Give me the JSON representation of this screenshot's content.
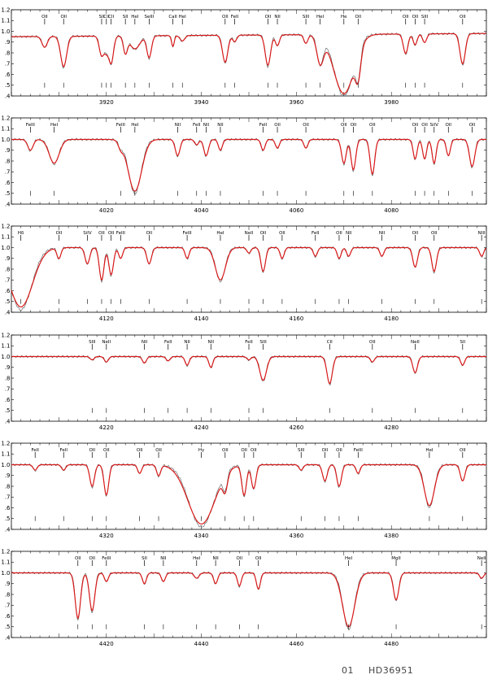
{
  "caption": {
    "label": "01",
    "star": "HD36951"
  },
  "colors": {
    "observed": "#555555",
    "model": "#d91a1a",
    "axes": "#000000"
  },
  "chart_data": [
    {
      "type": "line",
      "xlim": [
        3900,
        4000
      ],
      "ylim": [
        0.4,
        1.2
      ],
      "x_ticks": [
        3920,
        3940,
        3960,
        3980
      ],
      "y_ticks": [
        "1.2",
        "1.1",
        "1.0",
        ".9",
        ".8",
        ".7",
        ".6",
        ".5",
        ".4"
      ],
      "continuum": 0.95,
      "slope": 0.03,
      "lines": [
        {
          "x": 3907,
          "label": "OII",
          "d": 0.1,
          "w": 0.8
        },
        {
          "x": 3911,
          "label": "OII",
          "d": 0.28,
          "w": 0.9
        },
        {
          "x": 3919,
          "label": "SII",
          "d": 0.18,
          "w": 0.7
        },
        {
          "x": 3920,
          "label": "CII",
          "d": 0.12,
          "w": 0.6
        },
        {
          "x": 3921,
          "label": "CII",
          "d": 0.25,
          "w": 0.7
        },
        {
          "x": 3924,
          "label": "SII",
          "d": 0.15,
          "w": 0.6
        },
        {
          "x": 3926,
          "label": "HeI",
          "d": 0.12,
          "w": 1.5
        },
        {
          "x": 3929,
          "label": "SeIII",
          "d": 0.2,
          "w": 0.7
        },
        {
          "x": 3934,
          "label": "CaII",
          "d": 0.1,
          "w": 0.4
        },
        {
          "x": 3936,
          "label": "HeI",
          "d": 0.05,
          "w": 0.7
        },
        {
          "x": 3945,
          "label": "OII",
          "d": 0.25,
          "w": 0.8
        },
        {
          "x": 3947,
          "label": "FeII",
          "d": 0.06,
          "w": 0.6
        },
        {
          "x": 3954,
          "label": "OII",
          "d": 0.28,
          "w": 0.8
        },
        {
          "x": 3956,
          "label": "NII",
          "d": 0.1,
          "w": 0.6
        },
        {
          "x": 3962,
          "label": "SIII",
          "d": 0.08,
          "w": 0.6
        },
        {
          "x": 3965,
          "label": "HeI",
          "d": 0.25,
          "w": 1.0
        },
        {
          "x": 3970,
          "label": "He",
          "d": 0.55,
          "w": 3.0
        },
        {
          "x": 3973,
          "label": "OII",
          "d": 0.25,
          "w": 0.8
        },
        {
          "x": 3983,
          "label": "OII",
          "d": 0.18,
          "w": 0.7
        },
        {
          "x": 3985,
          "label": "OII",
          "d": 0.1,
          "w": 0.6
        },
        {
          "x": 3987,
          "label": "SIII",
          "d": 0.08,
          "w": 0.6
        },
        {
          "x": 3995,
          "label": "OII",
          "d": 0.28,
          "w": 0.8
        }
      ]
    },
    {
      "type": "line",
      "xlim": [
        4000,
        4100
      ],
      "ylim": [
        0.4,
        1.2
      ],
      "x_ticks": [
        4020,
        4040,
        4060,
        4080
      ],
      "y_ticks": [
        "1.2",
        "1.1",
        "1.0",
        ".9",
        ".8",
        ".7",
        ".6",
        ".5",
        ".4"
      ],
      "continuum": 1.0,
      "slope": 0.0,
      "lines": [
        {
          "x": 4004,
          "label": "FeIII",
          "d": 0.1,
          "w": 0.8
        },
        {
          "x": 4009,
          "label": "HeI",
          "d": 0.22,
          "w": 1.5
        },
        {
          "x": 4023,
          "label": "FeIII",
          "d": 0.06,
          "w": 0.7
        },
        {
          "x": 4026,
          "label": "HeI",
          "d": 0.48,
          "w": 2.0
        },
        {
          "x": 4035,
          "label": "NII",
          "d": 0.15,
          "w": 0.7
        },
        {
          "x": 4039,
          "label": "FeII",
          "d": 0.05,
          "w": 0.6
        },
        {
          "x": 4041,
          "label": "NII",
          "d": 0.15,
          "w": 0.7
        },
        {
          "x": 4044,
          "label": "NII",
          "d": 0.1,
          "w": 0.6
        },
        {
          "x": 4053,
          "label": "FeII",
          "d": 0.1,
          "w": 0.6
        },
        {
          "x": 4056,
          "label": "OII",
          "d": 0.08,
          "w": 0.6
        },
        {
          "x": 4062,
          "label": "OII",
          "d": 0.08,
          "w": 0.6
        },
        {
          "x": 4070,
          "label": "OII",
          "d": 0.22,
          "w": 0.7
        },
        {
          "x": 4072,
          "label": "OII",
          "d": 0.28,
          "w": 0.7
        },
        {
          "x": 4076,
          "label": "OII",
          "d": 0.32,
          "w": 0.7
        },
        {
          "x": 4085,
          "label": "OII",
          "d": 0.18,
          "w": 0.6
        },
        {
          "x": 4087,
          "label": "OII",
          "d": 0.18,
          "w": 0.6
        },
        {
          "x": 4089,
          "label": "SiIV",
          "d": 0.22,
          "w": 0.6
        },
        {
          "x": 4092,
          "label": "OII",
          "d": 0.15,
          "w": 0.6
        },
        {
          "x": 4097,
          "label": "OII",
          "d": 0.25,
          "w": 0.8
        }
      ]
    },
    {
      "type": "line",
      "xlim": [
        4100,
        4200
      ],
      "ylim": [
        0.4,
        1.2
      ],
      "x_ticks": [
        4120,
        4140,
        4160,
        4180
      ],
      "y_ticks": [
        "1.2",
        "1.1",
        "1.0",
        ".9",
        ".8",
        ".7",
        ".6",
        ".5",
        ".4"
      ],
      "continuum": 1.0,
      "slope": 0.0,
      "lines": [
        {
          "x": 4102,
          "label": "Hδ",
          "d": 0.55,
          "w": 3.5
        },
        {
          "x": 4110,
          "label": "OII",
          "d": 0.1,
          "w": 0.6
        },
        {
          "x": 4116,
          "label": "SiIV",
          "d": 0.15,
          "w": 0.7
        },
        {
          "x": 4119,
          "label": "OII",
          "d": 0.3,
          "w": 0.7
        },
        {
          "x": 4121,
          "label": "OII",
          "d": 0.25,
          "w": 0.7
        },
        {
          "x": 4123,
          "label": "FeIII",
          "d": 0.1,
          "w": 0.6
        },
        {
          "x": 4129,
          "label": "OII",
          "d": 0.15,
          "w": 0.7
        },
        {
          "x": 4137,
          "label": "FeIII",
          "d": 0.1,
          "w": 0.6
        },
        {
          "x": 4144,
          "label": "HeI",
          "d": 0.3,
          "w": 1.5
        },
        {
          "x": 4150,
          "label": "NeII",
          "d": 0.05,
          "w": 0.6
        },
        {
          "x": 4153,
          "label": "OII",
          "d": 0.22,
          "w": 0.7
        },
        {
          "x": 4157,
          "label": "OII",
          "d": 0.1,
          "w": 0.6
        },
        {
          "x": 4164,
          "label": "FeII",
          "d": 0.08,
          "w": 0.6
        },
        {
          "x": 4169,
          "label": "OII",
          "d": 0.1,
          "w": 0.6
        },
        {
          "x": 4171,
          "label": "NII",
          "d": 0.08,
          "w": 0.6
        },
        {
          "x": 4178,
          "label": "NII",
          "d": 0.08,
          "w": 0.6
        },
        {
          "x": 4185,
          "label": "OII",
          "d": 0.18,
          "w": 0.7
        },
        {
          "x": 4189,
          "label": "OII",
          "d": 0.22,
          "w": 0.7
        },
        {
          "x": 4199,
          "label": "NIII",
          "d": 0.08,
          "w": 0.6
        }
      ]
    },
    {
      "type": "line",
      "xlim": [
        4200,
        4300
      ],
      "ylim": [
        0.4,
        1.2
      ],
      "x_ticks": [
        4220,
        4240,
        4260,
        4280
      ],
      "y_ticks": [
        "1.2",
        "1.1",
        "1.0",
        ".9",
        ".8",
        ".7",
        ".6",
        ".5",
        ".4"
      ],
      "continuum": 1.0,
      "slope": 0.0,
      "lines": [
        {
          "x": 4217,
          "label": "SIII",
          "d": 0.03,
          "w": 0.6
        },
        {
          "x": 4220,
          "label": "NeII",
          "d": 0.05,
          "w": 0.6
        },
        {
          "x": 4228,
          "label": "NII",
          "d": 0.06,
          "w": 0.6
        },
        {
          "x": 4233,
          "label": "FeII",
          "d": 0.04,
          "w": 0.6
        },
        {
          "x": 4237,
          "label": "NII",
          "d": 0.08,
          "w": 0.6
        },
        {
          "x": 4242,
          "label": "NII",
          "d": 0.1,
          "w": 0.6
        },
        {
          "x": 4250,
          "label": "FeII",
          "d": 0.03,
          "w": 0.6
        },
        {
          "x": 4253,
          "label": "SIII",
          "d": 0.22,
          "w": 1.0
        },
        {
          "x": 4267,
          "label": "CII",
          "d": 0.25,
          "w": 0.8
        },
        {
          "x": 4276,
          "label": "OII",
          "d": 0.05,
          "w": 0.6
        },
        {
          "x": 4285,
          "label": "NeII",
          "d": 0.15,
          "w": 0.7
        },
        {
          "x": 4295,
          "label": "SII",
          "d": 0.08,
          "w": 0.6
        }
      ]
    },
    {
      "type": "line",
      "xlim": [
        4300,
        4400
      ],
      "ylim": [
        0.4,
        1.2
      ],
      "x_ticks": [
        4320,
        4340,
        4360,
        4380
      ],
      "y_ticks": [
        "1.2",
        "1.1",
        "1.0",
        ".9",
        ".8",
        ".7",
        ".6",
        ".5",
        ".4"
      ],
      "continuum": 1.0,
      "slope": 0.0,
      "lines": [
        {
          "x": 4305,
          "label": "FeII",
          "d": 0.05,
          "w": 0.6
        },
        {
          "x": 4311,
          "label": "FeII",
          "d": 0.05,
          "w": 0.6
        },
        {
          "x": 4317,
          "label": "OII",
          "d": 0.2,
          "w": 0.7
        },
        {
          "x": 4320,
          "label": "OII",
          "d": 0.28,
          "w": 0.7
        },
        {
          "x": 4327,
          "label": "OII",
          "d": 0.08,
          "w": 0.6
        },
        {
          "x": 4331,
          "label": "OII",
          "d": 0.1,
          "w": 0.6
        },
        {
          "x": 4340,
          "label": "Hγ",
          "d": 0.55,
          "w": 4.0
        },
        {
          "x": 4345,
          "label": "OII",
          "d": 0.15,
          "w": 0.7
        },
        {
          "x": 4349,
          "label": "OII",
          "d": 0.28,
          "w": 0.7
        },
        {
          "x": 4351,
          "label": "OII",
          "d": 0.22,
          "w": 0.7
        },
        {
          "x": 4361,
          "label": "SIII",
          "d": 0.05,
          "w": 0.6
        },
        {
          "x": 4366,
          "label": "OII",
          "d": 0.15,
          "w": 0.7
        },
        {
          "x": 4369,
          "label": "OII",
          "d": 0.2,
          "w": 0.7
        },
        {
          "x": 4373,
          "label": "FeIII",
          "d": 0.08,
          "w": 0.6
        },
        {
          "x": 4388,
          "label": "HeI",
          "d": 0.38,
          "w": 1.5
        },
        {
          "x": 4395,
          "label": "OII",
          "d": 0.15,
          "w": 0.7
        }
      ]
    },
    {
      "type": "line",
      "xlim": [
        4400,
        4500
      ],
      "ylim": [
        0.4,
        1.2
      ],
      "x_ticks": [
        4420,
        4440,
        4460,
        4480
      ],
      "y_ticks": [
        "1.2",
        "1.1",
        "1.0",
        ".9",
        ".8",
        ".7",
        ".6",
        ".5",
        ".4"
      ],
      "continuum": 1.0,
      "slope": 0.0,
      "lines": [
        {
          "x": 4414,
          "label": "OII",
          "d": 0.42,
          "w": 0.8
        },
        {
          "x": 4417,
          "label": "OII",
          "d": 0.35,
          "w": 0.8
        },
        {
          "x": 4420,
          "label": "FeIII",
          "d": 0.08,
          "w": 0.6
        },
        {
          "x": 4428,
          "label": "SII",
          "d": 0.1,
          "w": 0.6
        },
        {
          "x": 4432,
          "label": "NII",
          "d": 0.08,
          "w": 0.6
        },
        {
          "x": 4439,
          "label": "HeI",
          "d": 0.05,
          "w": 0.7
        },
        {
          "x": 4443,
          "label": "NII",
          "d": 0.1,
          "w": 0.6
        },
        {
          "x": 4448,
          "label": "OII",
          "d": 0.12,
          "w": 0.6
        },
        {
          "x": 4452,
          "label": "OII",
          "d": 0.15,
          "w": 0.6
        },
        {
          "x": 4471,
          "label": "HeI",
          "d": 0.5,
          "w": 1.8
        },
        {
          "x": 4481,
          "label": "MgII",
          "d": 0.25,
          "w": 0.8
        },
        {
          "x": 4499,
          "label": "NeII",
          "d": 0.05,
          "w": 0.6
        }
      ]
    }
  ]
}
